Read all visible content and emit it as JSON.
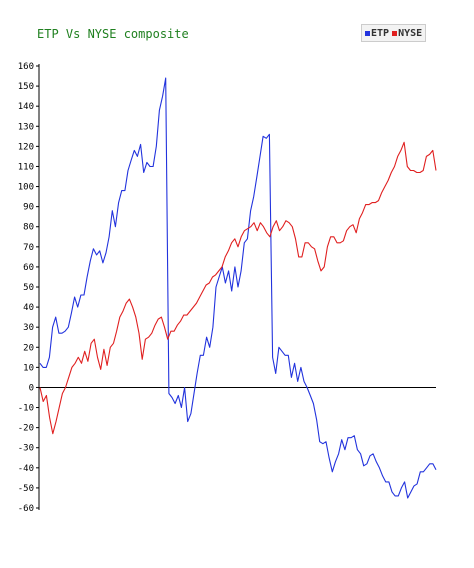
{
  "chart_data": {
    "type": "line",
    "title": "ETP Vs NYSE composite",
    "ylim": [
      -60,
      160
    ],
    "yticks": [
      160,
      150,
      140,
      130,
      120,
      110,
      100,
      90,
      80,
      70,
      60,
      50,
      40,
      30,
      20,
      10,
      0,
      -10,
      -20,
      -30,
      -40,
      -50,
      -60
    ],
    "zero_line": true,
    "grid": false,
    "legend_position": "top-right",
    "series": [
      {
        "name": "ETP",
        "color": "#2233dd",
        "values": [
          12,
          10,
          10,
          15,
          30,
          35,
          27,
          27,
          28,
          30,
          37,
          45,
          40,
          46,
          46,
          55,
          63,
          69,
          66,
          68,
          62,
          67,
          75,
          88,
          80,
          92,
          98,
          98,
          108,
          113,
          118,
          115,
          121,
          107,
          112,
          110,
          110,
          120,
          138,
          145,
          154,
          -3,
          -5,
          -8,
          -4,
          -10,
          0,
          -17,
          -13,
          -3,
          7,
          16,
          16,
          25,
          20,
          30,
          50,
          55,
          60,
          52,
          58,
          48,
          60,
          50,
          58,
          72,
          74,
          88,
          95,
          105,
          115,
          125,
          124,
          126,
          15,
          7,
          20,
          18,
          16,
          16,
          5,
          12,
          3,
          10,
          3,
          0,
          -4,
          -8,
          -16,
          -27,
          -28,
          -27,
          -35,
          -42,
          -37,
          -33,
          -26,
          -31,
          -25,
          -25,
          -24,
          -31,
          -33,
          -39,
          -38,
          -34,
          -33,
          -37,
          -40,
          -44,
          -47,
          -47,
          -52,
          -54,
          -54,
          -50,
          -47,
          -55,
          -52,
          -49,
          -48,
          -42,
          -42,
          -40,
          -38,
          -38,
          -41
        ]
      },
      {
        "name": "NYSE",
        "color": "#e02020",
        "values": [
          0,
          -7,
          -4,
          -15,
          -23,
          -17,
          -10,
          -3,
          0,
          5,
          10,
          12,
          15,
          12,
          18,
          13,
          22,
          24,
          15,
          9,
          19,
          11,
          20,
          22,
          28,
          35,
          38,
          42,
          44,
          40,
          35,
          27,
          14,
          24,
          25,
          27,
          31,
          34,
          35,
          30,
          24,
          28,
          28,
          31,
          33,
          36,
          36,
          38,
          40,
          42,
          45,
          48,
          51,
          52,
          55,
          56,
          58,
          60,
          65,
          68,
          72,
          74,
          70,
          75,
          78,
          79,
          80,
          82,
          78,
          82,
          80,
          77,
          75,
          80,
          83,
          78,
          80,
          83,
          82,
          80,
          74,
          65,
          65,
          72,
          72,
          70,
          69,
          63,
          58,
          60,
          70,
          75,
          75,
          72,
          72,
          73,
          78,
          80,
          81,
          77,
          84,
          87,
          91,
          91,
          92,
          92,
          93,
          97,
          100,
          103,
          107,
          110,
          115,
          118,
          122,
          110,
          108,
          108,
          107,
          107,
          108,
          115,
          116,
          118,
          108
        ]
      }
    ]
  }
}
